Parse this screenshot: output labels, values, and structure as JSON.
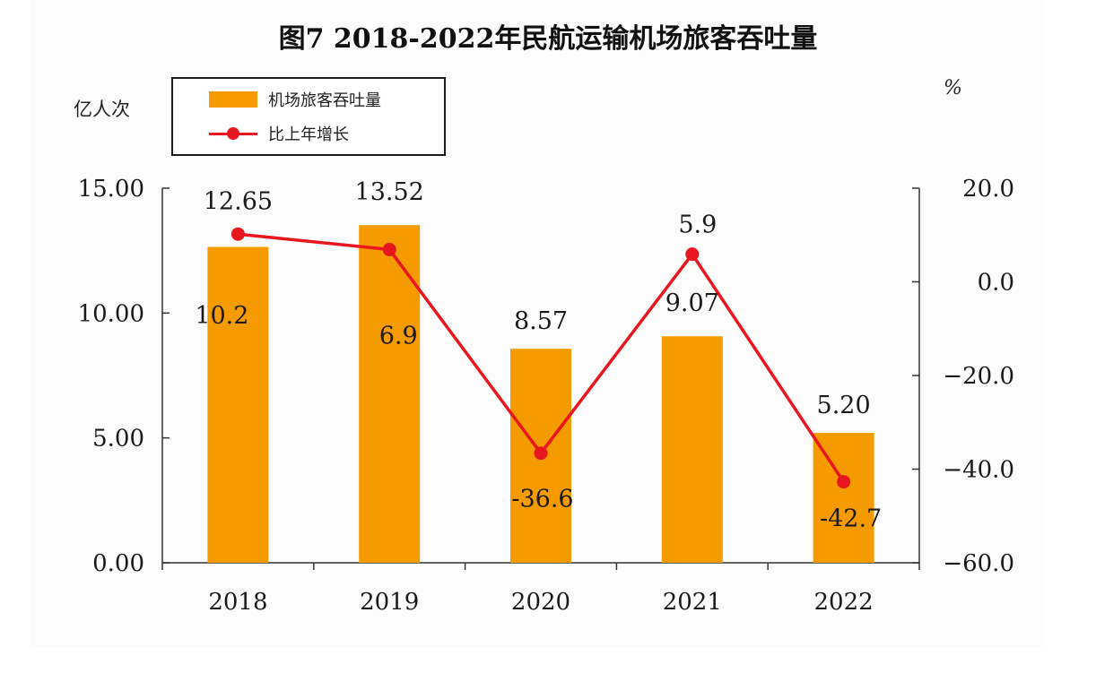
{
  "chart_data": {
    "type": "bar",
    "title": "图7 2018-2022年民航运输机场旅客吞吐量",
    "ylabel": "亿人次",
    "ylabel_right": "%",
    "categories": [
      "2018",
      "2019",
      "2020",
      "2021",
      "2022"
    ],
    "series": [
      {
        "name": "机场旅客吞吐量",
        "type": "bar",
        "axis": "left",
        "values": [
          12.65,
          13.52,
          8.57,
          9.07,
          5.2
        ],
        "labels": [
          "12.65",
          "13.52",
          "8.57",
          "9.07",
          "5.20"
        ],
        "color": "#F59B00"
      },
      {
        "name": "比上年增长",
        "type": "line",
        "axis": "right",
        "values": [
          10.2,
          6.9,
          -36.6,
          5.9,
          -42.7
        ],
        "labels": [
          "10.2",
          "6.9",
          "-36.6",
          "5.9",
          "-42.7"
        ],
        "color": "#E8161E"
      }
    ],
    "ylim": [
      0,
      15
    ],
    "y_ticks": [
      "0.00",
      "5.00",
      "10.00",
      "15.00"
    ],
    "ylim_right": [
      -60,
      20
    ],
    "y_ticks_right": [
      "−60.0",
      "−40.0",
      "−20.0",
      "0.0",
      "20.0"
    ],
    "legend_position": "top-left",
    "grid": false
  }
}
